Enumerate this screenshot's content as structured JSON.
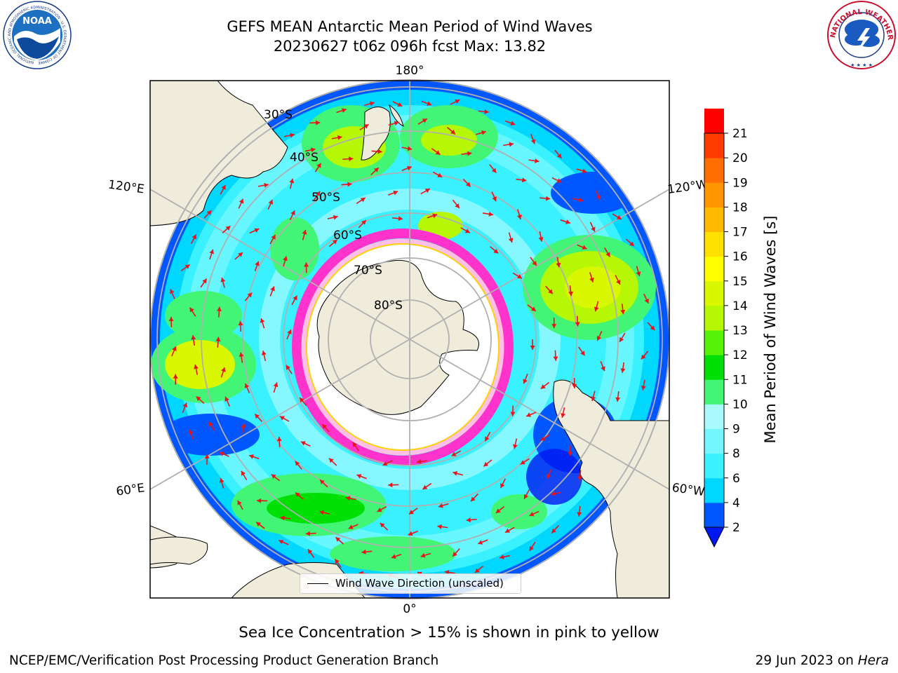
{
  "title": {
    "line1": "GEFS MEAN Antarctic Mean Period of Wind Waves",
    "line2": "20230627 t06z 096h fcst   Max: 13.82"
  },
  "logos": {
    "left": {
      "icon": "noaa-logo",
      "text": "NOAA"
    },
    "right": {
      "icon": "nws-logo",
      "text": "NATIONAL WEATHER SERVICE"
    }
  },
  "map": {
    "projection": "south-polar-stereographic",
    "longitude_labels": [
      "180°",
      "120°E",
      "120°W",
      "60°E",
      "60°W",
      "0°"
    ],
    "latitude_labels": [
      "30°S",
      "40°S",
      "50°S",
      "60°S",
      "70°S",
      "80°S"
    ],
    "legend_label": "Wind Wave Direction (unscaled)",
    "land_color": "#efecdc",
    "arrow_color": "#e8141a",
    "sea_ice_colors": [
      "#ff33cc",
      "#ffc0e6",
      "#ffd200"
    ]
  },
  "colorbar": {
    "label": "Mean Period of Wind Waves [s]",
    "ticks": [
      "2",
      "4",
      "6",
      "8",
      "9",
      "10",
      "11",
      "12",
      "13",
      "14",
      "15",
      "16",
      "17",
      "18",
      "19",
      "20",
      "21"
    ],
    "colors": [
      "#0057ff",
      "#00d7ff",
      "#3af2ff",
      "#74f6ff",
      "#a8faff",
      "#43f574",
      "#01e006",
      "#57f20a",
      "#b5f704",
      "#d9f700",
      "#ffff00",
      "#ffe000",
      "#ffba00",
      "#ff9500",
      "#ff6e00",
      "#ff3b00",
      "#ff0000"
    ],
    "extend_color": "#0018f0"
  },
  "note": "Sea Ice Concentration > 15% is shown in pink to yellow",
  "footer": {
    "left": "NCEP/EMC/Verification Post Processing Product Generation Branch",
    "date": "29 Jun 2023 on",
    "machine": "Hera"
  }
}
